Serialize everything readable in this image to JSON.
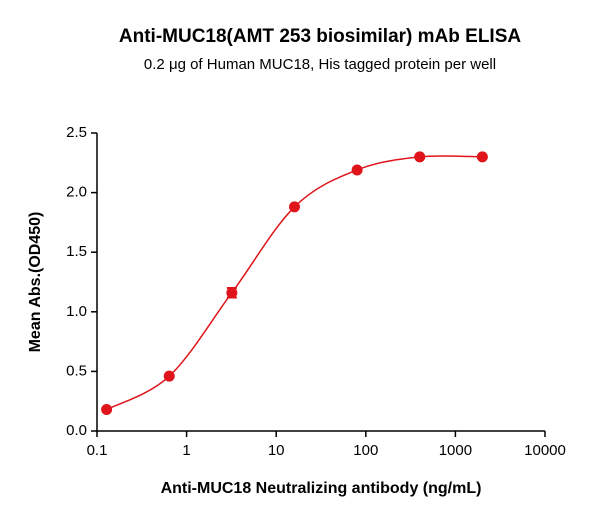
{
  "chart_data": {
    "type": "scatter",
    "title": "Anti-MUC18(AMT 253 biosimilar) mAb ELISA",
    "subtitle": "0.2 μg of Human MUC18, His tagged protein per well",
    "x_label": "Anti-MUC18 Neutralizing antibody (ng/mL)",
    "y_label": "Mean Abs.(OD450)",
    "x_scale": "log",
    "xlim": [
      0.1,
      10000
    ],
    "xticks": [
      0.1,
      1,
      10,
      100,
      1000,
      10000
    ],
    "ylim": [
      0,
      2.5
    ],
    "yticks": [
      {
        "value": 0,
        "label": "0.0"
      },
      0.5,
      {
        "value": 1,
        "label": "1.0"
      },
      1.5,
      {
        "value": 2,
        "label": "2.0"
      },
      2.5
    ],
    "fit_line": true,
    "series": [
      {
        "name": "Anti-MUC18",
        "color": "#e0141b",
        "x": [
          0.128,
          0.64,
          3.2,
          16,
          80,
          400,
          2000
        ],
        "values": [
          0.18,
          0.46,
          1.16,
          1.88,
          2.19,
          2.3,
          2.3
        ],
        "errors": [
          0.01,
          0.01,
          0.04,
          0.01,
          0.01,
          0.01,
          0.01
        ]
      }
    ]
  }
}
